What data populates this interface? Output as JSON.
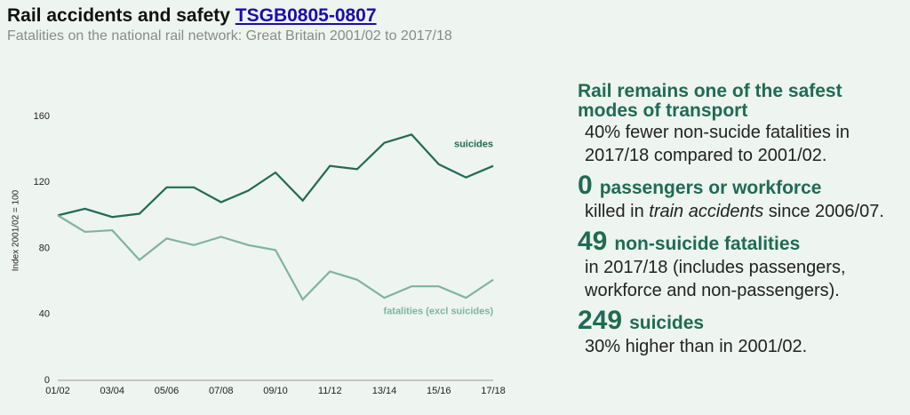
{
  "header": {
    "title": "Rail accidents and safety",
    "link": "TSGB0805-0807",
    "subtitle": "Fatalities on the national rail network: Great Britain 2001/02 to 2017/18"
  },
  "chart_data": {
    "type": "line",
    "y_label": "Index 2001/02 = 100",
    "categories": [
      "01/02",
      null,
      "03/04",
      null,
      "05/06",
      null,
      "07/08",
      null,
      "09/10",
      null,
      "11/12",
      null,
      "13/14",
      null,
      "15/16",
      null,
      "17/18"
    ],
    "series": [
      {
        "name": "suicides",
        "color": "#1f6b55",
        "values": [
          100,
          104,
          99,
          101,
          117,
          117,
          108,
          115,
          126,
          109,
          130,
          128,
          144,
          149,
          131,
          123,
          130
        ]
      },
      {
        "name": "fatalities (excl suicides)",
        "color": "#7fb3a3",
        "values": [
          100,
          90,
          91,
          73,
          86,
          82,
          87,
          82,
          79,
          49,
          66,
          61,
          50,
          57,
          57,
          50,
          61
        ]
      }
    ],
    "ylim": [
      0,
      160
    ],
    "yticks": [
      0,
      40,
      80,
      120,
      160
    ],
    "grid": false
  },
  "facts": {
    "heading": "Rail remains one of the safest modes of transport",
    "heading_text": "40% fewer non-sucide fatalities in 2017/18 compared to 2001/02.",
    "items": [
      {
        "number": 0,
        "label": "passengers or workforce",
        "text": [
          "killed in",
          "train accidents",
          "since 2006/07."
        ]
      },
      {
        "number": 49,
        "label": "non-suicide fatalities",
        "text": [
          "in 2017/18 (includes passengers, workforce and non-passengers)."
        ]
      },
      {
        "number": 249,
        "label": "suicides",
        "text": [
          "30% higher than in 2001/02."
        ]
      }
    ]
  }
}
